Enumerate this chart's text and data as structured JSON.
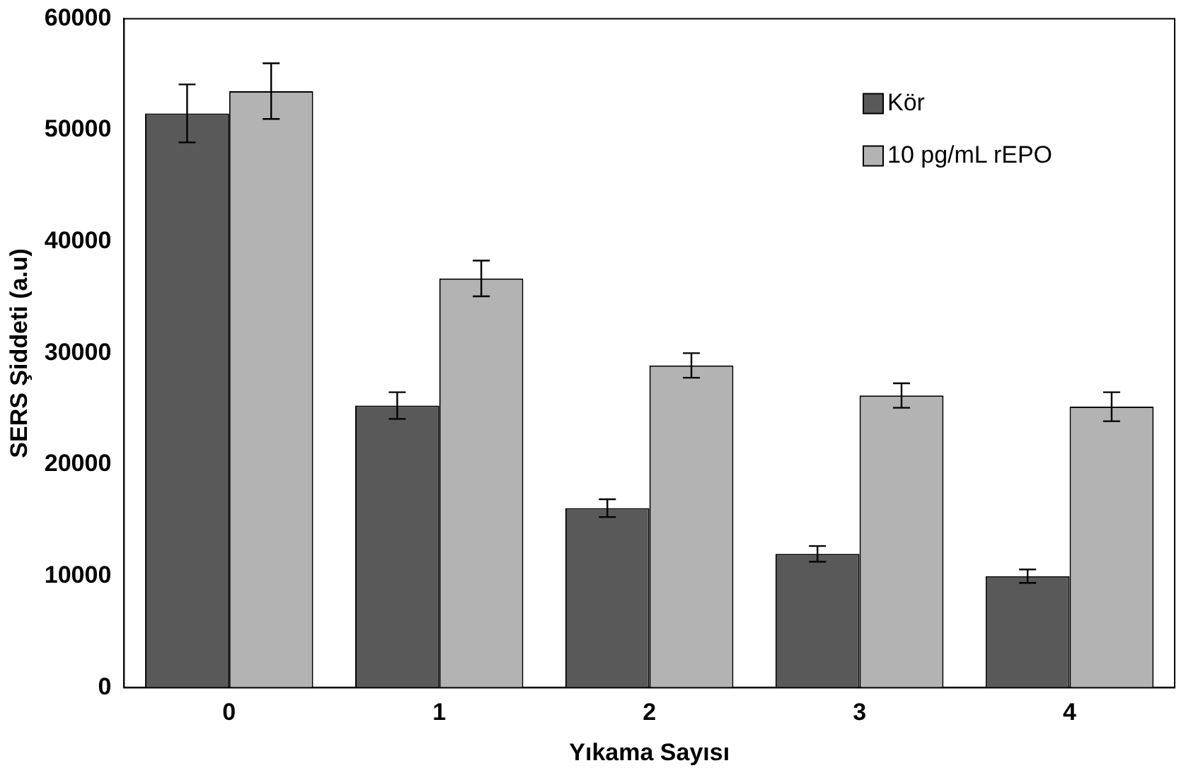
{
  "chart_data": {
    "type": "bar",
    "xlabel": "Yıkama Sayısı",
    "ylabel": "SERS Şiddeti (a.u)",
    "categories": [
      "0",
      "1",
      "2",
      "3",
      "4"
    ],
    "series": [
      {
        "name": "Kör",
        "color": "#595959",
        "values": [
          51500,
          25300,
          16100,
          12000,
          10000
        ],
        "errors": [
          2600,
          1200,
          800,
          700,
          600
        ]
      },
      {
        "name": "10 pg/mL rEPO",
        "color": "#b3b3b3",
        "values": [
          53500,
          36700,
          28900,
          26200,
          25200
        ],
        "errors": [
          2500,
          1600,
          1100,
          1100,
          1300
        ]
      }
    ],
    "ylim": [
      0,
      60000
    ],
    "yticks": [
      0,
      10000,
      20000,
      30000,
      40000,
      50000,
      60000
    ],
    "grid": false,
    "legend": "top right"
  }
}
